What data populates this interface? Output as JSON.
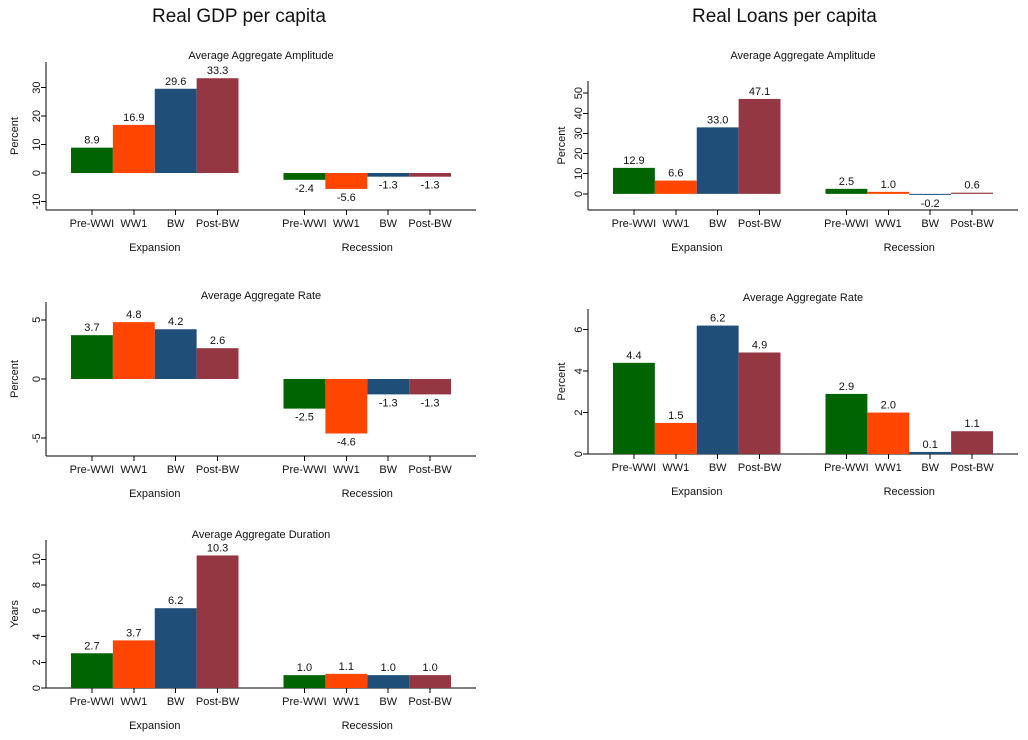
{
  "column_titles": [
    "Real GDP per capita",
    "Real Loans per capita"
  ],
  "colors": {
    "Pre-WWI": "#006400",
    "WW1": "#ff4500",
    "BW": "#1f4e79",
    "Post-BW": "#943742"
  },
  "chart_data": [
    {
      "type": "bar",
      "id": "gdp-amplitude",
      "title": "Average Aggregate Amplitude",
      "ylabel": "Percent",
      "groups": [
        "Expansion",
        "Recession"
      ],
      "categories": [
        "Pre-WWI",
        "WW1",
        "BW",
        "Post-BW"
      ],
      "values": [
        [
          8.9,
          16.9,
          29.6,
          33.3
        ],
        [
          -2.4,
          -5.6,
          -1.3,
          -1.3
        ]
      ],
      "labels": [
        [
          "8.9",
          "16.9",
          "29.6",
          "33.3"
        ],
        [
          "-2.4",
          "-5.6",
          "-1.3",
          "-1.3"
        ]
      ],
      "yticks": [
        -10,
        0,
        10,
        20,
        30
      ],
      "ylim": [
        -13,
        39
      ]
    },
    {
      "type": "bar",
      "id": "gdp-rate",
      "title": "Average Aggregate Rate",
      "ylabel": "Percent",
      "groups": [
        "Expansion",
        "Recession"
      ],
      "categories": [
        "Pre-WWI",
        "WW1",
        "BW",
        "Post-BW"
      ],
      "values": [
        [
          3.7,
          4.8,
          4.2,
          2.6
        ],
        [
          -2.5,
          -4.6,
          -1.3,
          -1.3
        ]
      ],
      "labels": [
        [
          "3.7",
          "4.8",
          "4.2",
          "2.6"
        ],
        [
          "-2.5",
          "-4.6",
          "-1.3",
          "-1.3"
        ]
      ],
      "yticks": [
        -5,
        0,
        5
      ],
      "ylim": [
        -6.5,
        6.5
      ]
    },
    {
      "type": "bar",
      "id": "gdp-duration",
      "title": "Average Aggregate Duration",
      "ylabel": "Years",
      "groups": [
        "Expansion",
        "Recession"
      ],
      "categories": [
        "Pre-WWI",
        "WW1",
        "BW",
        "Post-BW"
      ],
      "values": [
        [
          2.7,
          3.7,
          6.2,
          10.3
        ],
        [
          1.0,
          1.1,
          1.0,
          1.0
        ]
      ],
      "labels": [
        [
          "2.7",
          "3.7",
          "6.2",
          "10.3"
        ],
        [
          "1.0",
          "1.1",
          "1.0",
          "1.0"
        ]
      ],
      "yticks": [
        0,
        2,
        4,
        6,
        8,
        10
      ],
      "ylim": [
        0,
        11.5
      ]
    },
    {
      "type": "bar",
      "id": "loans-amplitude",
      "title": "Average Aggregate Amplitude",
      "ylabel": "Percent",
      "groups": [
        "Expansion",
        "Recession"
      ],
      "categories": [
        "Pre-WWI",
        "WW1",
        "BW",
        "Post-BW"
      ],
      "values": [
        [
          12.9,
          6.6,
          33.0,
          47.1
        ],
        [
          2.5,
          1.0,
          -0.2,
          0.6
        ]
      ],
      "labels": [
        [
          "12.9",
          "6.6",
          "33.0",
          "47.1"
        ],
        [
          "2.5",
          "1.0",
          "-0.2",
          "0.6"
        ]
      ],
      "yticks": [
        0,
        10,
        20,
        30,
        40,
        50
      ],
      "ylim": [
        -8,
        56
      ]
    },
    {
      "type": "bar",
      "id": "loans-rate",
      "title": "Average Aggregate Rate",
      "ylabel": "Percent",
      "groups": [
        "Expansion",
        "Recession"
      ],
      "categories": [
        "Pre-WWI",
        "WW1",
        "BW",
        "Post-BW"
      ],
      "values": [
        [
          4.4,
          1.5,
          6.2,
          4.9
        ],
        [
          2.9,
          2.0,
          0.1,
          1.1
        ]
      ],
      "labels": [
        [
          "4.4",
          "1.5",
          "6.2",
          "4.9"
        ],
        [
          "2.9",
          "2.0",
          "0.1",
          "1.1"
        ]
      ],
      "yticks": [
        0,
        2,
        4,
        6
      ],
      "ylim": [
        0,
        7.0
      ]
    }
  ]
}
